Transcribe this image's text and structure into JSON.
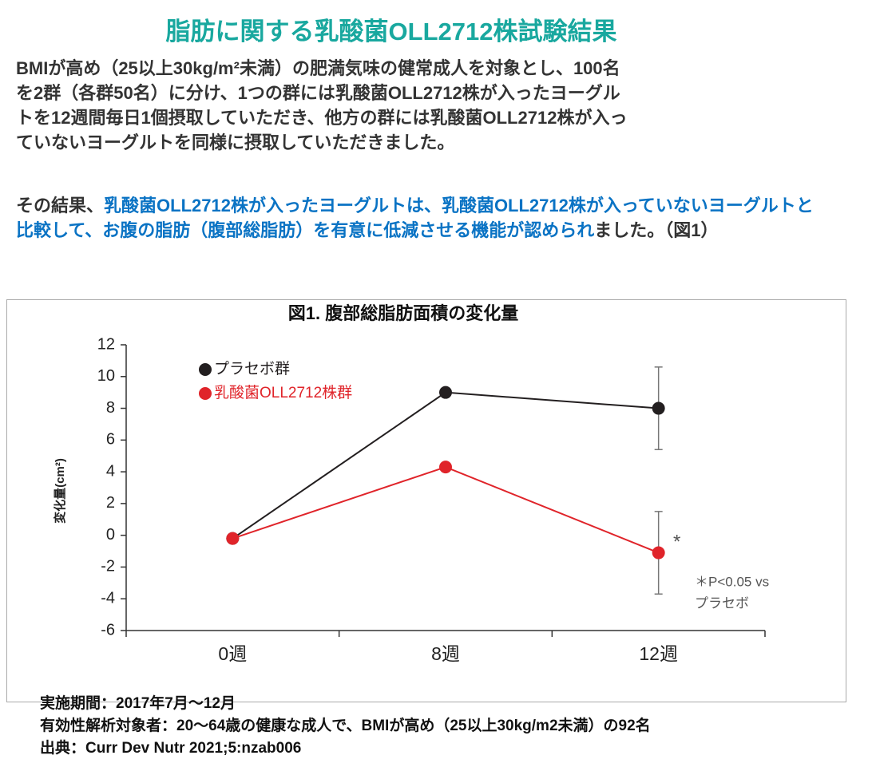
{
  "header": {
    "title": "脂肪に関する乳酸菌OLL2712株試験結果"
  },
  "intro": {
    "lines": [
      "BMIが高め（25以上30kg/m²未満）の肥満気味の健常成人を対象とし、100名",
      "を2群（各群50名）に分け、1つの群には乳酸菌OLL2712株が入ったヨーグル",
      "トを12週間毎日1個摂取していただき、他方の群には乳酸菌OLL2712株が入っ",
      "ていないヨーグルトを同様に摂取していただきました。"
    ]
  },
  "result": {
    "segments": [
      {
        "text": "その結果、",
        "color": "#333333"
      },
      {
        "text": "乳酸菌OLL2712株が入ったヨーグルトは、乳酸菌OLL2712株が入っていないヨーグルトと比較して、お腹の脂肪（腹部総脂肪）を有意に低減させる機能が認められ",
        "color": "#0a73c4"
      },
      {
        "text": "ました。（図1）",
        "color": "#333333"
      }
    ]
  },
  "chart_data": {
    "type": "line",
    "title": "図1. 腹部総脂肪面積の変化量",
    "y_label": "変化量(cm²)",
    "categories": [
      "0週",
      "8週",
      "12週"
    ],
    "series": [
      {
        "name": "プラセボ群",
        "color": "#231f20",
        "values": [
          -0.2,
          9,
          8
        ],
        "errors": [
          null,
          null,
          2.6
        ]
      },
      {
        "name": "乳酸菌OLL2712株群",
        "color": "#e0242a",
        "values": [
          -0.2,
          4.3,
          -1.1
        ],
        "errors": [
          null,
          null,
          2.6
        ]
      }
    ],
    "ylim": [
      -6,
      12
    ],
    "yticks": [
      -6,
      -4,
      -2,
      0,
      2,
      4,
      6,
      8,
      10,
      12
    ],
    "grid": false,
    "legend": "upper-left",
    "annotations": [
      "*",
      "＊P<0.05 vs",
      "プラセボ"
    ]
  },
  "footer": {
    "lines": [
      "実施期間：2017年7月〜12月",
      "有効性解析対象者：20〜64歳の健康な成人で、BMIが高め（25以上30kg/m2未満）の92名",
      "出典：Curr Dev Nutr 2021;5:nzab006"
    ]
  }
}
